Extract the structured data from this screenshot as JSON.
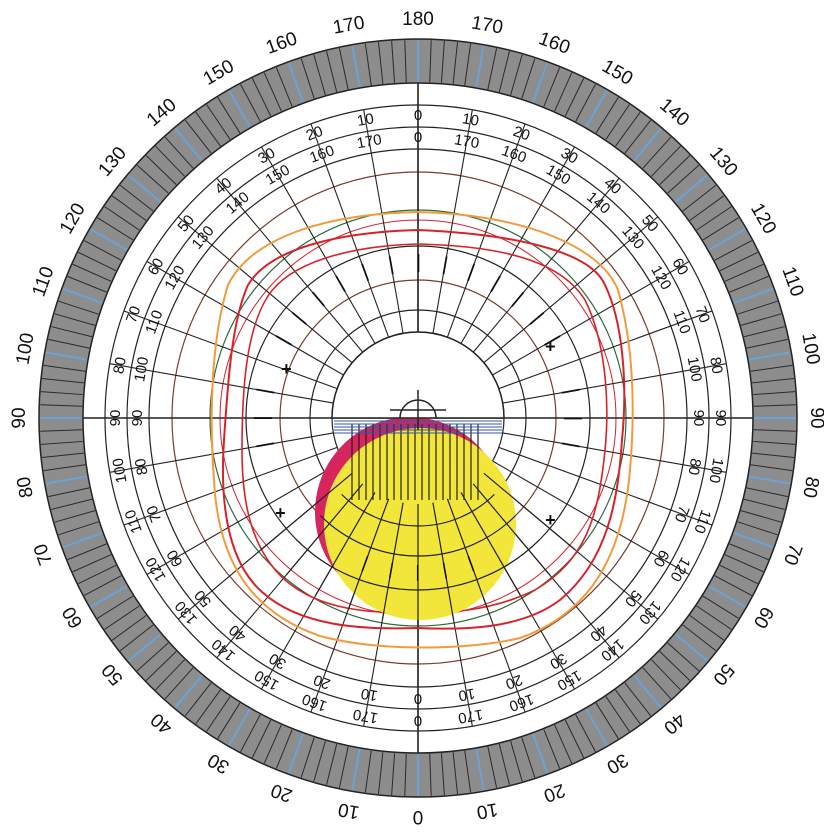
{
  "outer_scale": {
    "top_half": [
      "180",
      "170",
      "160",
      "150",
      "140",
      "130",
      "120",
      "110",
      "100",
      "90",
      "80",
      "70",
      "60",
      "50",
      "40",
      "30",
      "20",
      "10"
    ],
    "bottom_half": [
      "0",
      "10",
      "20",
      "30",
      "40",
      "50",
      "60",
      "70",
      "80",
      "90",
      "100",
      "110",
      "120",
      "130",
      "140",
      "150",
      "160",
      "170"
    ]
  },
  "inner_scale_a": {
    "top_half": [
      "0",
      "10",
      "20",
      "30",
      "40",
      "50",
      "60",
      "70",
      "80",
      "90",
      "100",
      "110",
      "120",
      "130",
      "140",
      "150",
      "160",
      "170"
    ],
    "bottom_half": [
      "0",
      "170",
      "160",
      "150",
      "140",
      "130",
      "120",
      "110",
      "100",
      "90",
      "80",
      "70",
      "60",
      "50",
      "40",
      "30",
      "20",
      "10"
    ]
  },
  "inner_scale_b": {
    "top_half": [
      "0",
      "170",
      "160",
      "150",
      "140",
      "130",
      "120",
      "110",
      "100",
      "90",
      "80",
      "70",
      "60",
      "50",
      "40",
      "30",
      "20",
      "10"
    ],
    "bottom_half": [
      "0",
      "10",
      "20",
      "30",
      "40",
      "50",
      "60",
      "70",
      "80",
      "90",
      "100",
      "110",
      "120",
      "130",
      "140",
      "150",
      "160",
      "170"
    ]
  },
  "markers": {
    "plus": "+",
    "minus": "—"
  },
  "colors": {
    "band_fill": "#8d8d8d",
    "band_tick_blue": "#6ba3d6",
    "grid_line": "#222222",
    "red_isopter": "#d8222a",
    "orange_isopter": "#f39a3a",
    "green_isopter": "#2e6b3a",
    "brown_isopter": "#7a3c2a",
    "magenta_field": "#d7255d",
    "yellow_field": "#f2e63a",
    "blue_hatch": "#2f57a8"
  }
}
